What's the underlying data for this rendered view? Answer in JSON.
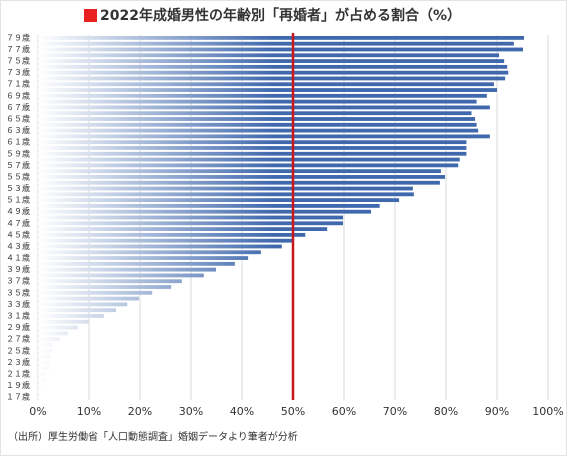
{
  "chart_data": {
    "type": "barh",
    "title": "2022年成婚男性の年齢別「再婚者」が占める割合（%）",
    "source": "（出所）厚生労働省「人口動態調査」婚姻データより筆者が分析",
    "categories": [
      "７９歳",
      null,
      "７７歳",
      null,
      "７５歳",
      null,
      "７３歳",
      null,
      "７１歳",
      null,
      "６９歳",
      null,
      "６７歳",
      null,
      "６５歳",
      null,
      "６３歳",
      null,
      "６１歳",
      null,
      "５９歳",
      null,
      "５７歳",
      null,
      "５５歳",
      null,
      "５３歳",
      null,
      "５１歳",
      null,
      "４９歳",
      null,
      "４７歳",
      null,
      "４５歳",
      null,
      "４３歳",
      null,
      "４１歳",
      null,
      "３９歳",
      null,
      "３７歳",
      null,
      "３５歳",
      null,
      "３３歳",
      null,
      "３１歳",
      null,
      "２９歳",
      null,
      "２７歳",
      null,
      "２５歳",
      null,
      "２３歳",
      null,
      "２１歳",
      null,
      "１９歳",
      null,
      "１７歳"
    ],
    "values": [
      95.3,
      93.3,
      95.1,
      90.4,
      91.4,
      92,
      92.2,
      91.6,
      89.4,
      90,
      88,
      86,
      88.6,
      85,
      85.7,
      86,
      86.3,
      88.6,
      84,
      84,
      84,
      82.7,
      82.4,
      79,
      79.8,
      78.8,
      73.5,
      73.7,
      70.8,
      67,
      65.3,
      59.8,
      59.8,
      56.7,
      52.4,
      50,
      47.8,
      43.7,
      41.2,
      38.6,
      34.9,
      32.5,
      28.2,
      26.1,
      22.4,
      19.8,
      17.5,
      15.3,
      12.9,
      10,
      7.8,
      5.9,
      4.3,
      2.9,
      2.7,
      2.5,
      2.4,
      2.2,
      1.6,
      1.4,
      0.8,
      0.6,
      0.2
    ],
    "color": "#3f68ad",
    "title_marker_color": "#e8201f",
    "reference_line": {
      "value": 50,
      "color": "#c8181e"
    },
    "xlim": [
      0,
      100
    ],
    "xticks": [
      {
        "value": 0,
        "label": "0%"
      },
      {
        "value": 10,
        "label": "10%"
      },
      {
        "value": 20,
        "label": "20%"
      },
      {
        "value": 30,
        "label": "30%"
      },
      {
        "value": 40,
        "label": "40%"
      },
      {
        "value": 50,
        "label": "50%"
      },
      {
        "value": 60,
        "label": "60%"
      },
      {
        "value": 70,
        "label": "70%"
      },
      {
        "value": 80,
        "label": "80%"
      },
      {
        "value": 90,
        "label": "90%"
      },
      {
        "value": 100,
        "label": "100%"
      }
    ],
    "grid": true
  }
}
